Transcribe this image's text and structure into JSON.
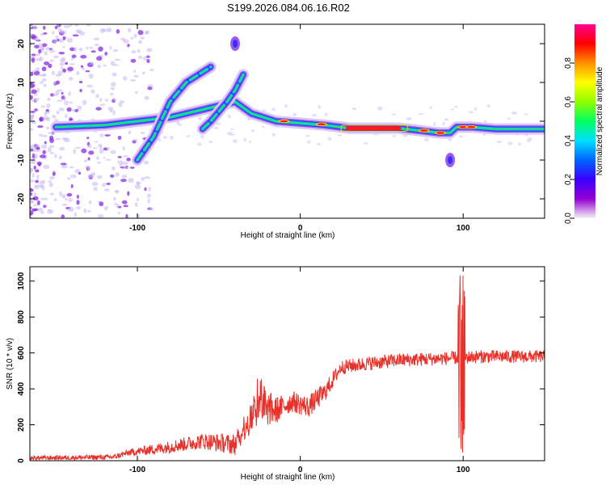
{
  "page_title": "S199.2026.084.06.16.R02",
  "chart_data": [
    {
      "type": "heatmap",
      "xlabel": "Height of straight line (km)",
      "ylabel": "Frequency (Hz)",
      "xlim": [
        -166,
        150
      ],
      "ylim": [
        -25,
        25
      ],
      "xticks": [
        -100,
        0,
        100
      ],
      "xtick_labels": [
        "-100",
        "0",
        "100"
      ],
      "yticks": [
        -20,
        -10,
        0,
        10,
        20
      ],
      "ytick_labels": [
        "-20",
        "-10",
        "0",
        "10",
        "20"
      ],
      "colorbar": {
        "label": "Normalized spectral amplitude",
        "range": [
          0,
          1
        ],
        "ticks": [
          0.0,
          0.2,
          0.4,
          0.6,
          0.8
        ],
        "tick_labels": [
          "0.0",
          "0.2",
          "0.4",
          "0.6",
          "0.8"
        ],
        "colors": [
          "#f4f4f4",
          "#9400d3",
          "#3a00ff",
          "#0064ff",
          "#00e0ff",
          "#00ff60",
          "#90ff00",
          "#ffff00",
          "#ff9000",
          "#ff0000",
          "#ff0090"
        ]
      },
      "features": [
        {
          "name": "main-trace",
          "points": [
            [
              -150,
              -1.5
            ],
            [
              -120,
              -1
            ],
            [
              -100,
              0
            ],
            [
              -80,
              1
            ],
            [
              -50,
              4
            ],
            [
              -40,
              5
            ],
            [
              -30,
              2
            ],
            [
              -15,
              0
            ],
            [
              0,
              -0.5
            ],
            [
              15,
              -1
            ],
            [
              30,
              -1.8
            ],
            [
              60,
              -1.8
            ],
            [
              75,
              -2.5
            ],
            [
              85,
              -3
            ],
            [
              92,
              -3
            ],
            [
              96,
              -1.5
            ],
            [
              105,
              -1.5
            ],
            [
              120,
              -2
            ],
            [
              150,
              -2
            ]
          ]
        },
        {
          "name": "branch-1",
          "points": [
            [
              -100,
              -10
            ],
            [
              -90,
              -4
            ],
            [
              -80,
              5
            ],
            [
              -70,
              10
            ],
            [
              -55,
              14
            ]
          ]
        },
        {
          "name": "branch-2",
          "points": [
            [
              -60,
              -2
            ],
            [
              -55,
              0
            ],
            [
              -45,
              5
            ],
            [
              -40,
              8
            ],
            [
              -35,
              12
            ]
          ]
        },
        {
          "name": "spot-upper",
          "points": [
            [
              -40,
              20
            ]
          ]
        },
        {
          "name": "spike-low",
          "points": [
            [
              92,
              -10
            ]
          ]
        }
      ]
    },
    {
      "type": "line",
      "xlabel": "Height of straight line (km)",
      "ylabel": "SNR (10 * v/v)",
      "xlim": [
        -166,
        150
      ],
      "ylim": [
        0,
        1080
      ],
      "xticks": [
        -100,
        0,
        100
      ],
      "xtick_labels": [
        "-100",
        "0",
        "100"
      ],
      "yticks": [
        0,
        200,
        400,
        600,
        800,
        1000
      ],
      "ytick_labels": [
        "0",
        "200",
        "400",
        "600",
        "800",
        "1000"
      ],
      "color": "#e8302a",
      "envelope": [
        {
          "x": -166,
          "y": 15
        },
        {
          "x": -115,
          "y": 20
        },
        {
          "x": -105,
          "y": 45
        },
        {
          "x": -85,
          "y": 70
        },
        {
          "x": -60,
          "y": 110
        },
        {
          "x": -40,
          "y": 90
        },
        {
          "x": -35,
          "y": 180
        },
        {
          "x": -25,
          "y": 300
        },
        {
          "x": -15,
          "y": 280
        },
        {
          "x": -5,
          "y": 330
        },
        {
          "x": 5,
          "y": 300
        },
        {
          "x": 15,
          "y": 380
        },
        {
          "x": 25,
          "y": 520
        },
        {
          "x": 40,
          "y": 540
        },
        {
          "x": 60,
          "y": 560
        },
        {
          "x": 90,
          "y": 570
        },
        {
          "x": 110,
          "y": 580
        },
        {
          "x": 150,
          "y": 580
        }
      ],
      "noise": [
        {
          "x": -166,
          "y": 12
        },
        {
          "x": -110,
          "y": 15
        },
        {
          "x": -90,
          "y": 30
        },
        {
          "x": -60,
          "y": 45
        },
        {
          "x": -38,
          "y": 60
        },
        {
          "x": -25,
          "y": 120
        },
        {
          "x": -10,
          "y": 60
        },
        {
          "x": 10,
          "y": 60
        },
        {
          "x": 25,
          "y": 40
        },
        {
          "x": 150,
          "y": 35
        }
      ],
      "spike": {
        "x": 99,
        "min": 40,
        "max": 1080
      }
    }
  ]
}
